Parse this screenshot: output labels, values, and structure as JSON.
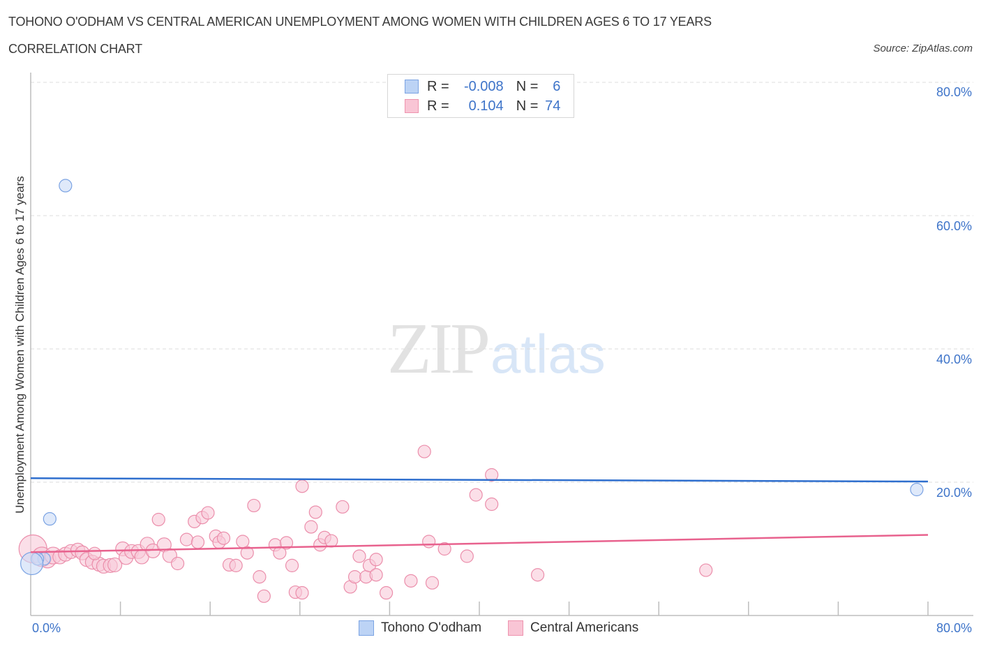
{
  "header": {
    "title": "TOHONO O'ODHAM VS CENTRAL AMERICAN UNEMPLOYMENT AMONG WOMEN WITH CHILDREN AGES 6 TO 17 YEARS",
    "subtitle": "CORRELATION CHART",
    "source": "Source: ZipAtlas.com"
  },
  "stats_legend": {
    "rows": [
      {
        "r_label": "R =",
        "r_value": "-0.008",
        "n_label": "N =",
        "n_value": "6",
        "color": "#7ba3e3"
      },
      {
        "r_label": "R =",
        "r_value": "0.104",
        "n_label": "N =",
        "n_value": "74",
        "color": "#ee93ae"
      }
    ]
  },
  "axes": {
    "y_label": "Unemployment Among Women with Children Ages 6 to 17 years",
    "y_ticks": [
      "80.0%",
      "60.0%",
      "40.0%",
      "20.0%"
    ],
    "x_min_label": "0.0%",
    "x_max_label": "80.0%"
  },
  "series_legend": [
    {
      "name": "Tohono O'odham",
      "color": "#bcd3f5"
    },
    {
      "name": "Central Americans",
      "color": "#f9c5d5"
    }
  ],
  "watermark": {
    "zip": "ZIP",
    "atlas": "atlas"
  },
  "colors": {
    "blue_point_fill": "#c9dbf6",
    "blue_point_stroke": "#7ba3e3",
    "blue_trend": "#2f6fce",
    "pink_point_fill": "#f8c9d8",
    "pink_point_stroke": "#eb8eab",
    "pink_trend": "#e8628e",
    "tick_label": "#3e74c9"
  },
  "chart_data": {
    "type": "scatter",
    "title": "TOHONO O'ODHAM VS CENTRAL AMERICAN UNEMPLOYMENT AMONG WOMEN WITH CHILDREN AGES 6 TO 17 YEARS",
    "subtitle": "CORRELATION CHART",
    "xlabel": "",
    "ylabel": "Unemployment Among Women with Children Ages 6 to 17 years",
    "xlim": [
      0,
      80
    ],
    "ylim": [
      0,
      80
    ],
    "x_ticks_labeled": [
      "0.0%",
      "80.0%"
    ],
    "y_ticks_labeled": [
      "20.0%",
      "40.0%",
      "60.0%",
      "80.0%"
    ],
    "grid": "horizontal dashed",
    "legend_position": "bottom center",
    "series": [
      {
        "name": "Tohono O'odham",
        "R": -0.008,
        "N": 6,
        "trend": {
          "x": [
            0,
            80
          ],
          "y": [
            20.6,
            20.1
          ]
        },
        "points": [
          {
            "x": 3.1,
            "y": 64.5,
            "r": 9
          },
          {
            "x": 1.7,
            "y": 14.5,
            "r": 9
          },
          {
            "x": 1.2,
            "y": 8.5,
            "r": 9
          },
          {
            "x": 0.6,
            "y": 8.5,
            "r": 9
          },
          {
            "x": 0.1,
            "y": 7.8,
            "r": 16
          },
          {
            "x": 79.0,
            "y": 18.9,
            "r": 9
          }
        ]
      },
      {
        "name": "Central Americans",
        "R": 0.104,
        "N": 74,
        "trend": {
          "x": [
            0,
            80
          ],
          "y": [
            9.5,
            12.1
          ]
        },
        "points": [
          {
            "x": 0.2,
            "y": 10.0,
            "r": 20
          },
          {
            "x": 1.0,
            "y": 8.8,
            "r": 14
          },
          {
            "x": 1.5,
            "y": 8.4,
            "r": 12
          },
          {
            "x": 2.0,
            "y": 9.0,
            "r": 12
          },
          {
            "x": 2.6,
            "y": 8.8,
            "r": 10
          },
          {
            "x": 3.1,
            "y": 9.2,
            "r": 10
          },
          {
            "x": 3.6,
            "y": 9.6,
            "r": 10
          },
          {
            "x": 4.2,
            "y": 9.8,
            "r": 10
          },
          {
            "x": 4.6,
            "y": 9.4,
            "r": 10
          },
          {
            "x": 5.0,
            "y": 8.4,
            "r": 10
          },
          {
            "x": 5.5,
            "y": 8.0,
            "r": 10
          },
          {
            "x": 6.1,
            "y": 7.7,
            "r": 10
          },
          {
            "x": 6.5,
            "y": 7.4,
            "r": 10
          },
          {
            "x": 7.1,
            "y": 7.5,
            "r": 10
          },
          {
            "x": 7.5,
            "y": 7.6,
            "r": 10
          },
          {
            "x": 8.2,
            "y": 10.0,
            "r": 10
          },
          {
            "x": 8.5,
            "y": 8.7,
            "r": 10
          },
          {
            "x": 9.0,
            "y": 9.6,
            "r": 10
          },
          {
            "x": 9.6,
            "y": 9.6,
            "r": 10
          },
          {
            "x": 9.9,
            "y": 8.8,
            "r": 10
          },
          {
            "x": 10.4,
            "y": 10.7,
            "r": 10
          },
          {
            "x": 10.9,
            "y": 9.7,
            "r": 10
          },
          {
            "x": 11.4,
            "y": 14.4,
            "r": 9
          },
          {
            "x": 11.9,
            "y": 10.6,
            "r": 10
          },
          {
            "x": 12.4,
            "y": 9.0,
            "r": 10
          },
          {
            "x": 13.1,
            "y": 7.8,
            "r": 9
          },
          {
            "x": 13.9,
            "y": 11.4,
            "r": 9
          },
          {
            "x": 14.6,
            "y": 14.1,
            "r": 9
          },
          {
            "x": 14.9,
            "y": 11.0,
            "r": 9
          },
          {
            "x": 15.3,
            "y": 14.7,
            "r": 9
          },
          {
            "x": 15.8,
            "y": 15.4,
            "r": 9
          },
          {
            "x": 16.5,
            "y": 11.9,
            "r": 9
          },
          {
            "x": 16.8,
            "y": 11.0,
            "r": 9
          },
          {
            "x": 17.2,
            "y": 11.6,
            "r": 9
          },
          {
            "x": 17.7,
            "y": 7.6,
            "r": 9
          },
          {
            "x": 18.3,
            "y": 7.5,
            "r": 9
          },
          {
            "x": 18.9,
            "y": 11.1,
            "r": 9
          },
          {
            "x": 19.3,
            "y": 9.4,
            "r": 9
          },
          {
            "x": 19.9,
            "y": 16.5,
            "r": 9
          },
          {
            "x": 20.4,
            "y": 5.8,
            "r": 9
          },
          {
            "x": 20.8,
            "y": 2.9,
            "r": 9
          },
          {
            "x": 21.8,
            "y": 10.6,
            "r": 9
          },
          {
            "x": 22.2,
            "y": 9.4,
            "r": 9
          },
          {
            "x": 22.8,
            "y": 10.9,
            "r": 9
          },
          {
            "x": 23.3,
            "y": 7.5,
            "r": 9
          },
          {
            "x": 23.6,
            "y": 3.5,
            "r": 9
          },
          {
            "x": 24.2,
            "y": 3.4,
            "r": 9
          },
          {
            "x": 24.2,
            "y": 19.4,
            "r": 9
          },
          {
            "x": 25.0,
            "y": 13.3,
            "r": 9
          },
          {
            "x": 25.4,
            "y": 15.5,
            "r": 9
          },
          {
            "x": 25.8,
            "y": 10.6,
            "r": 9
          },
          {
            "x": 26.2,
            "y": 11.7,
            "r": 9
          },
          {
            "x": 26.8,
            "y": 11.2,
            "r": 9
          },
          {
            "x": 27.8,
            "y": 16.3,
            "r": 9
          },
          {
            "x": 28.5,
            "y": 4.3,
            "r": 9
          },
          {
            "x": 28.9,
            "y": 5.8,
            "r": 9
          },
          {
            "x": 29.3,
            "y": 8.9,
            "r": 9
          },
          {
            "x": 29.9,
            "y": 5.8,
            "r": 9
          },
          {
            "x": 30.2,
            "y": 7.5,
            "r": 9
          },
          {
            "x": 30.8,
            "y": 8.4,
            "r": 9
          },
          {
            "x": 30.8,
            "y": 6.1,
            "r": 9
          },
          {
            "x": 31.7,
            "y": 3.4,
            "r": 9
          },
          {
            "x": 33.9,
            "y": 5.2,
            "r": 9
          },
          {
            "x": 35.1,
            "y": 24.6,
            "r": 9
          },
          {
            "x": 35.5,
            "y": 11.1,
            "r": 9
          },
          {
            "x": 35.8,
            "y": 4.9,
            "r": 9
          },
          {
            "x": 36.9,
            "y": 10.0,
            "r": 9
          },
          {
            "x": 38.9,
            "y": 8.9,
            "r": 9
          },
          {
            "x": 39.7,
            "y": 18.1,
            "r": 9
          },
          {
            "x": 41.1,
            "y": 16.7,
            "r": 9
          },
          {
            "x": 41.1,
            "y": 21.1,
            "r": 9
          },
          {
            "x": 45.2,
            "y": 6.1,
            "r": 9
          },
          {
            "x": 60.2,
            "y": 6.8,
            "r": 9
          },
          {
            "x": 5.7,
            "y": 9.3,
            "r": 9
          }
        ]
      }
    ]
  }
}
